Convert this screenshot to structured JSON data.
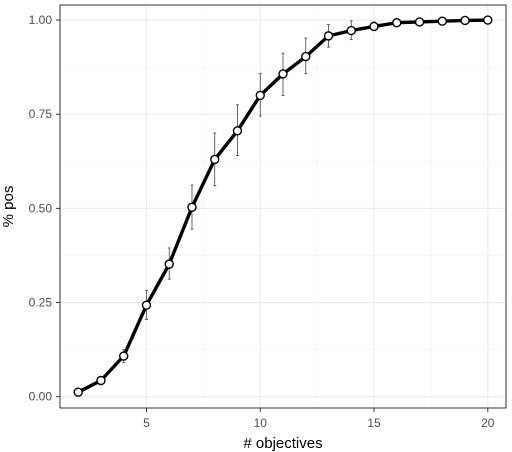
{
  "chart_data": {
    "type": "line",
    "xlabel": "# objectives",
    "ylabel": "% pos",
    "xlim": [
      1.2,
      20.8
    ],
    "ylim": [
      -0.03,
      1.04
    ],
    "x_ticks": [
      5,
      10,
      15,
      20
    ],
    "y_ticks": [
      0.0,
      0.25,
      0.5,
      0.75,
      1.0
    ],
    "y_tick_labels": [
      "0.00",
      "0.25",
      "0.50",
      "0.75",
      "1.00"
    ],
    "grid": true,
    "x": [
      2,
      3,
      4,
      5,
      6,
      7,
      8,
      9,
      10,
      11,
      12,
      13,
      14,
      15,
      16,
      17,
      18,
      19,
      20
    ],
    "y": [
      0.012,
      0.043,
      0.108,
      0.243,
      0.352,
      0.503,
      0.63,
      0.706,
      0.8,
      0.857,
      0.903,
      0.958,
      0.972,
      0.983,
      0.993,
      0.995,
      0.997,
      0.999,
      1.0
    ],
    "error_low": [
      0.008,
      0.036,
      0.09,
      0.205,
      0.312,
      0.445,
      0.56,
      0.64,
      0.745,
      0.8,
      0.858,
      0.928,
      0.948,
      0.972,
      0.988,
      0.99,
      0.994,
      0.997,
      1.0
    ],
    "error_high": [
      0.016,
      0.05,
      0.125,
      0.282,
      0.395,
      0.562,
      0.7,
      0.775,
      0.858,
      0.912,
      0.952,
      0.988,
      0.998,
      0.995,
      0.998,
      0.999,
      1.0,
      1.0,
      1.0
    ]
  }
}
